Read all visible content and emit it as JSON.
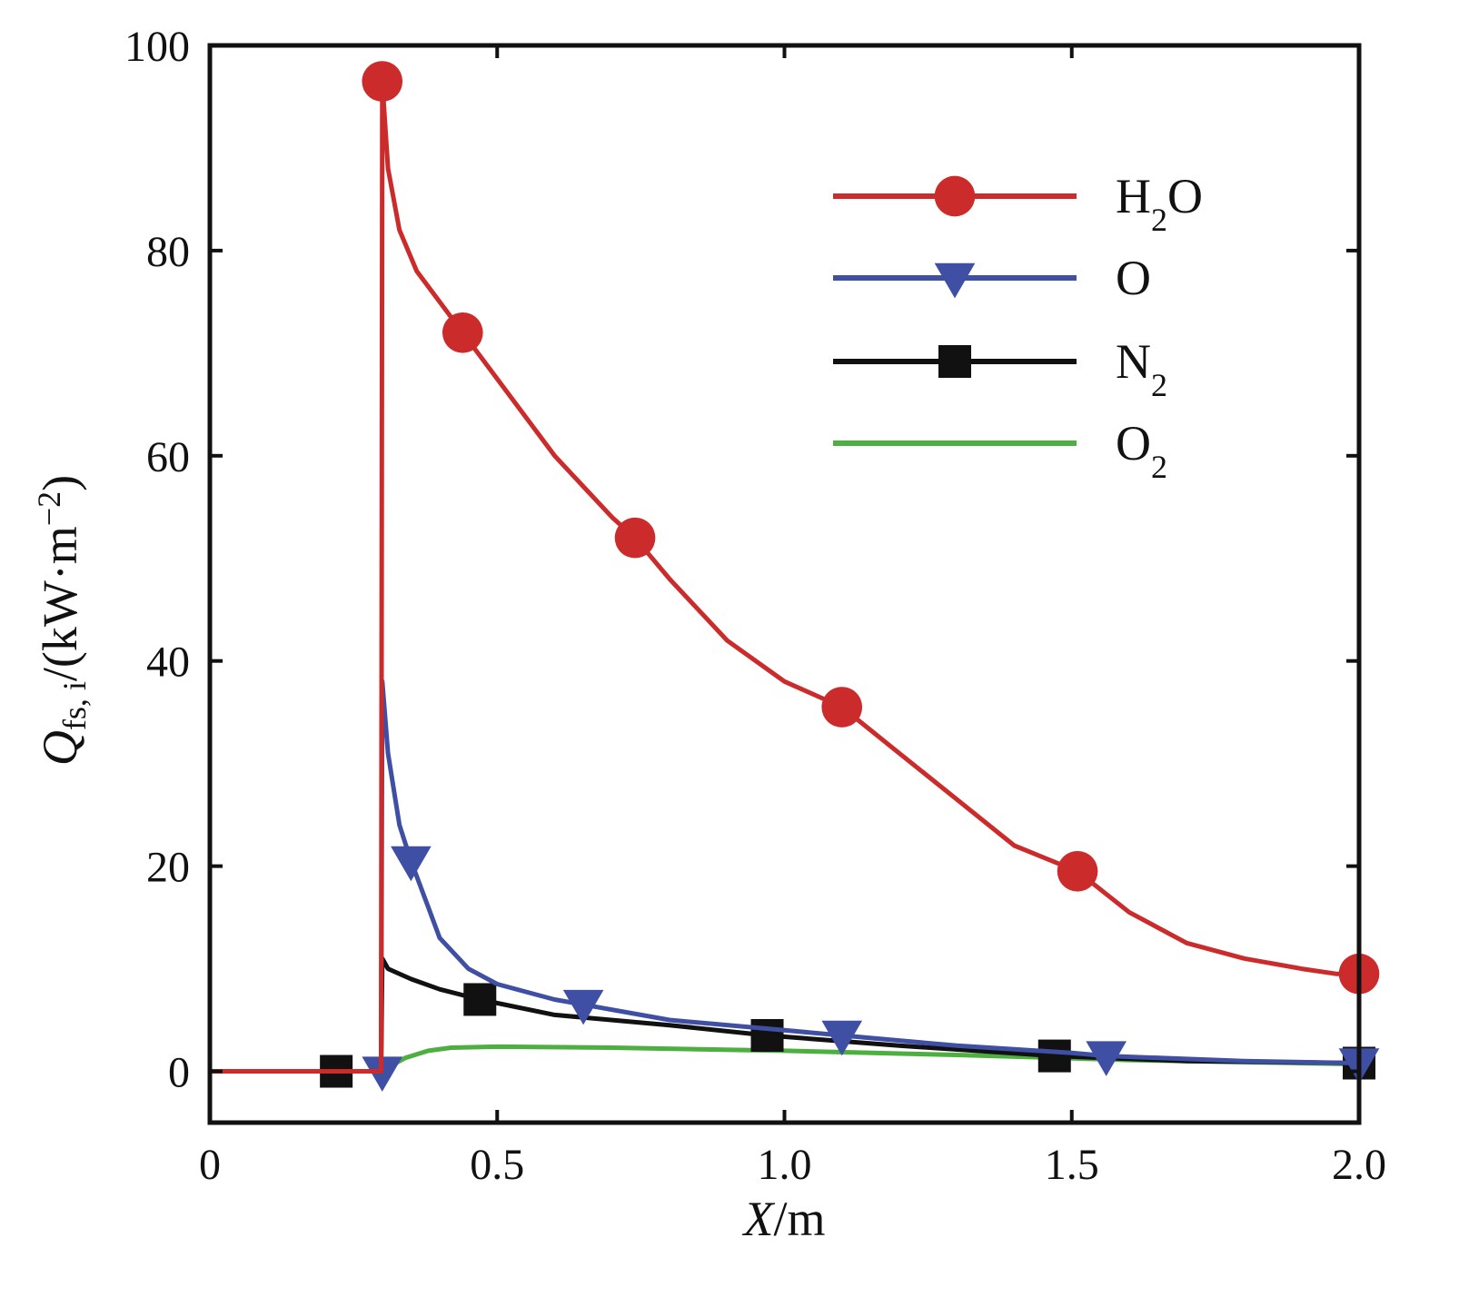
{
  "chart_data": {
    "type": "line",
    "title": "",
    "xlabel": {
      "main": "X",
      "unit": "/m"
    },
    "ylabel": {
      "main": "Q",
      "subscript": "fs, i",
      "unit": "/(kW·m",
      "unit_sup": "−2",
      "unit_close": ")"
    },
    "xlim": [
      0,
      2.0
    ],
    "ylim": [
      -5,
      100
    ],
    "xticks": [
      {
        "value": 0,
        "label": "0"
      },
      {
        "value": 0.5,
        "label": "0.5"
      },
      {
        "value": 1.0,
        "label": "1.0"
      },
      {
        "value": 1.5,
        "label": "1.5"
      },
      {
        "value": 2.0,
        "label": "2.0"
      }
    ],
    "yticks": [
      {
        "value": 0,
        "label": "0"
      },
      {
        "value": 20,
        "label": "20"
      },
      {
        "value": 40,
        "label": "40"
      },
      {
        "value": 60,
        "label": "60"
      },
      {
        "value": 80,
        "label": "80"
      },
      {
        "value": 100,
        "label": "100"
      }
    ],
    "grid": false,
    "legend_position": "top-right",
    "series": [
      {
        "name": "H",
        "name_sub": "2",
        "name_tail": "O",
        "color": "#cc2b2b",
        "marker": "circle",
        "x": [
          0,
          0.29,
          0.298,
          0.3,
          0.31,
          0.33,
          0.36,
          0.4,
          0.44,
          0.5,
          0.6,
          0.7,
          0.74,
          0.8,
          0.9,
          1.0,
          1.1,
          1.2,
          1.3,
          1.4,
          1.51,
          1.6,
          1.7,
          1.8,
          1.9,
          1.96,
          2.0
        ],
        "y": [
          0,
          0,
          0,
          96.5,
          88,
          82,
          78,
          75,
          72,
          67.5,
          60,
          54,
          52,
          48,
          42,
          38,
          35.5,
          31,
          26.5,
          22,
          19.5,
          15.5,
          12.5,
          11,
          10,
          9.5,
          9.5
        ],
        "marker_x": [
          0.3,
          0.44,
          0.74,
          1.1,
          1.51,
          2.0
        ],
        "marker_y": [
          96.5,
          72,
          52,
          35.5,
          19.5,
          9.5
        ]
      },
      {
        "name": "O",
        "name_sub": "",
        "name_tail": "",
        "color": "#3f4fa4",
        "marker": "triangle-down",
        "x": [
          0,
          0.29,
          0.298,
          0.3,
          0.31,
          0.33,
          0.35,
          0.38,
          0.4,
          0.45,
          0.5,
          0.6,
          0.65,
          0.8,
          1.0,
          1.1,
          1.3,
          1.5,
          1.56,
          1.8,
          2.0
        ],
        "y": [
          0,
          0,
          0,
          38,
          31,
          24,
          20.5,
          16,
          13,
          10,
          8.5,
          7,
          6.5,
          5,
          4,
          3.5,
          2.5,
          1.8,
          1.5,
          1,
          0.8
        ],
        "marker_x": [
          0.3,
          0.35,
          0.65,
          1.1,
          1.56,
          2.0
        ],
        "marker_y": [
          0,
          20.5,
          6.5,
          3.5,
          1.5,
          0.8
        ]
      },
      {
        "name": "N",
        "name_sub": "2",
        "name_tail": "",
        "color": "#111111",
        "marker": "square",
        "x": [
          0,
          0.22,
          0.29,
          0.298,
          0.3,
          0.31,
          0.35,
          0.4,
          0.47,
          0.6,
          0.8,
          0.97,
          1.2,
          1.47,
          1.7,
          2.0
        ],
        "y": [
          0,
          0,
          0,
          0,
          11,
          10,
          9,
          8,
          7,
          5.5,
          4.5,
          3.5,
          2.5,
          1.5,
          1,
          0.8
        ],
        "marker_x": [
          0.22,
          0.47,
          0.97,
          1.47,
          2.0
        ],
        "marker_y": [
          0,
          7,
          3.5,
          1.5,
          0.8
        ]
      },
      {
        "name": "O",
        "name_sub": "2",
        "name_tail": "",
        "color": "#4caf3f",
        "marker": "none",
        "x": [
          0,
          0.29,
          0.31,
          0.34,
          0.38,
          0.42,
          0.5,
          0.7,
          1.0,
          1.3,
          1.6,
          2.0
        ],
        "y": [
          0,
          0,
          0.4,
          1.3,
          2.0,
          2.3,
          2.4,
          2.3,
          2.0,
          1.6,
          1.1,
          0.7
        ],
        "marker_x": [],
        "marker_y": []
      }
    ]
  }
}
